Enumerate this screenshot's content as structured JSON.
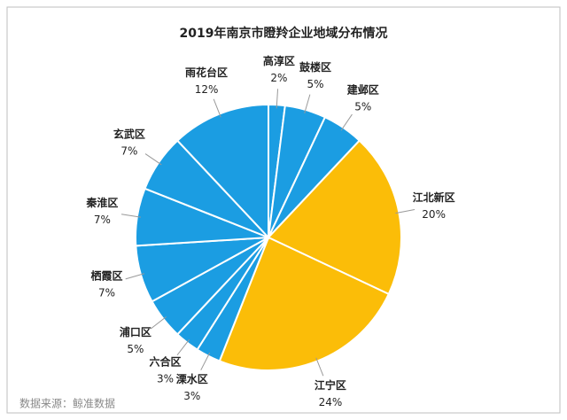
{
  "chart_data": {
    "type": "pie",
    "title": "2019年南京市瞪羚企业地域分布情况",
    "categories": [
      "高淳区",
      "鼓楼区",
      "建邺区",
      "江北新区",
      "江宁区",
      "溧水区",
      "六合区",
      "浦口区",
      "栖霞区",
      "秦淮区",
      "玄武区",
      "雨花台区"
    ],
    "values": [
      2,
      5,
      5,
      20,
      24,
      3,
      3,
      5,
      7,
      7,
      7,
      12
    ],
    "value_labels": [
      "2%",
      "5%",
      "5%",
      "20%",
      "24%",
      "3%",
      "3%",
      "5%",
      "7%",
      "7%",
      "7%",
      "12%"
    ],
    "colors": [
      "#1b9de2",
      "#1b9de2",
      "#1b9de2",
      "#fbbd08",
      "#fbbd08",
      "#1b9de2",
      "#1b9de2",
      "#1b9de2",
      "#1b9de2",
      "#1b9de2",
      "#1b9de2",
      "#1b9de2"
    ],
    "source": "数据来源：鲸准数据"
  }
}
